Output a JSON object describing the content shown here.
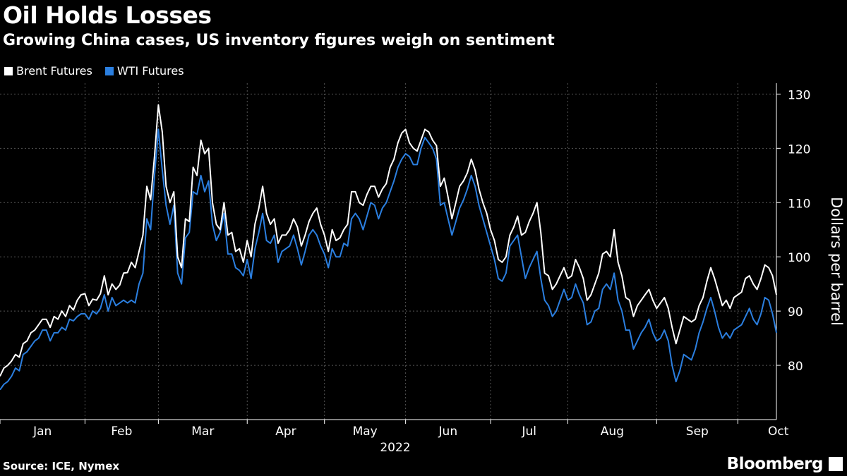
{
  "title": "Oil Holds Losses",
  "subtitle": "Growing China cases, US inventory figures weigh on sentiment",
  "source": "Source: ICE, Nymex",
  "brand": "Bloomberg",
  "colors": {
    "background": "#000000",
    "brent": "#ffffff",
    "wti": "#2b7fe0",
    "grid": "#555555"
  },
  "chart_data": {
    "type": "line",
    "title": "Oil Holds Losses",
    "subtitle": "Growing China cases, US inventory figures weigh on sentiment",
    "xlabel": "2022",
    "ylabel": "Dollars per barrel",
    "ylim": [
      70,
      132
    ],
    "yticks": [
      80,
      90,
      100,
      110,
      120,
      130
    ],
    "x_axis_year": "2022",
    "month_labels": [
      "Jan",
      "Feb",
      "Mar",
      "Apr",
      "May",
      "Jun",
      "Jul",
      "Aug",
      "Sep",
      "Oct"
    ],
    "month_tick_index": [
      0,
      22,
      41,
      64,
      84,
      105,
      127,
      147,
      170,
      191
    ],
    "legend": [
      "Brent Futures",
      "WTI Futures"
    ],
    "legend_position": "top-left",
    "grid": true,
    "series": [
      {
        "name": "Brent Futures",
        "values": [
          78.0,
          79.5,
          80.0,
          80.8,
          82.0,
          81.5,
          84.0,
          84.5,
          86.0,
          86.5,
          87.5,
          88.5,
          88.5,
          87.0,
          89.0,
          88.5,
          90.0,
          89.0,
          91.0,
          90.2,
          92.0,
          93.0,
          93.2,
          91.0,
          92.2,
          92.0,
          93.2,
          96.5,
          93.0,
          95.0,
          94.0,
          94.8,
          97.0,
          97.1,
          99.0,
          98.0,
          101.0,
          104.0,
          113.0,
          110.5,
          118.5,
          128.0,
          123.0,
          113.0,
          110.0,
          112.0,
          100.0,
          98.0,
          107.0,
          106.5,
          116.5,
          115.0,
          121.5,
          119.0,
          120.0,
          110.0,
          106.0,
          105.0,
          110.0,
          104.0,
          104.5,
          101.0,
          101.5,
          99.0,
          103.0,
          100.0,
          106.0,
          109.0,
          113.0,
          108.0,
          106.0,
          107.0,
          102.5,
          104.0,
          104.0,
          105.0,
          107.0,
          105.5,
          102.0,
          104.0,
          106.5,
          108.0,
          109.0,
          106.0,
          104.0,
          101.0,
          105.0,
          103.0,
          103.5,
          105.0,
          106.0,
          112.0,
          112.0,
          110.0,
          109.5,
          111.5,
          113.0,
          113.0,
          111.0,
          112.5,
          113.5,
          116.5,
          118.0,
          121.0,
          122.8,
          123.5,
          121.0,
          120.0,
          119.5,
          121.5,
          123.5,
          123.0,
          121.5,
          120.5,
          113.0,
          114.5,
          111.0,
          107.0,
          110.0,
          113.0,
          114.0,
          115.5,
          118.0,
          116.0,
          112.5,
          110.0,
          108.0,
          105.0,
          103.0,
          99.5,
          99.0,
          100.0,
          104.0,
          105.5,
          107.5,
          104.0,
          104.5,
          106.5,
          108.0,
          110.0,
          104.5,
          97.0,
          96.5,
          94.0,
          95.0,
          96.5,
          98.0,
          96.0,
          96.5,
          99.5,
          98.0,
          96.0,
          92.0,
          93.0,
          95.0,
          97.0,
          100.5,
          101.0,
          100.0,
          105.0,
          99.0,
          96.5,
          92.5,
          92.0,
          89.0,
          91.0,
          92.0,
          93.0,
          94.0,
          92.0,
          90.5,
          91.5,
          92.5,
          90.5,
          87.0,
          84.0,
          86.5,
          89.0,
          88.5,
          88.0,
          88.5,
          91.0,
          92.5,
          95.5,
          98.0,
          96.0,
          93.5,
          91.0,
          92.0,
          90.5,
          92.5,
          93.0,
          93.5,
          96.0,
          96.5,
          95.0,
          94.0,
          96.0,
          98.5,
          98.0,
          96.5,
          93.0
        ]
      },
      {
        "name": "WTI Futures",
        "values": [
          75.5,
          76.5,
          77.0,
          78.0,
          79.5,
          79.0,
          82.0,
          82.5,
          83.5,
          84.5,
          85.0,
          86.5,
          86.5,
          84.5,
          86.0,
          86.0,
          87.0,
          86.5,
          88.5,
          88.2,
          89.0,
          89.5,
          89.5,
          88.5,
          90.0,
          89.5,
          90.5,
          93.0,
          90.0,
          92.5,
          91.0,
          91.5,
          92.0,
          91.5,
          92.0,
          91.5,
          95.0,
          97.0,
          107.0,
          105.0,
          115.0,
          123.5,
          116.0,
          109.5,
          106.0,
          109.5,
          97.0,
          95.0,
          103.5,
          104.5,
          112.0,
          111.5,
          115.0,
          112.0,
          114.0,
          106.0,
          103.0,
          104.5,
          108.0,
          100.5,
          100.5,
          98.0,
          97.5,
          96.5,
          99.5,
          96.0,
          101.5,
          104.5,
          108.0,
          103.0,
          102.5,
          104.0,
          99.0,
          101.0,
          101.5,
          102.0,
          104.0,
          101.5,
          98.5,
          101.0,
          104.0,
          105.0,
          104.0,
          102.0,
          100.5,
          98.0,
          101.5,
          100.0,
          100.0,
          102.5,
          102.0,
          107.0,
          108.0,
          107.0,
          105.0,
          107.5,
          110.0,
          109.5,
          107.0,
          109.0,
          110.0,
          112.0,
          114.0,
          116.5,
          118.0,
          119.0,
          118.5,
          117.0,
          117.0,
          120.0,
          122.0,
          121.0,
          120.0,
          118.0,
          109.5,
          110.0,
          107.0,
          104.0,
          106.5,
          109.0,
          110.5,
          112.5,
          115.0,
          113.0,
          109.5,
          107.0,
          104.5,
          102.0,
          99.5,
          96.0,
          95.5,
          97.0,
          102.0,
          103.0,
          104.0,
          100.0,
          96.0,
          98.0,
          99.5,
          101.0,
          96.0,
          92.0,
          91.0,
          89.0,
          90.0,
          92.0,
          94.0,
          92.0,
          92.5,
          95.0,
          93.0,
          91.5,
          87.5,
          88.0,
          90.0,
          90.5,
          94.0,
          95.0,
          94.0,
          97.0,
          92.0,
          90.0,
          86.5,
          86.5,
          83.0,
          84.5,
          86.0,
          87.0,
          88.5,
          86.0,
          84.5,
          85.0,
          86.5,
          84.5,
          80.0,
          77.0,
          79.0,
          82.0,
          81.5,
          81.0,
          83.0,
          86.0,
          88.0,
          90.5,
          92.5,
          90.0,
          87.0,
          85.0,
          86.0,
          85.0,
          86.5,
          87.0,
          87.5,
          89.0,
          90.5,
          88.5,
          87.5,
          89.5,
          92.5,
          92.0,
          89.5,
          86.0
        ]
      }
    ]
  }
}
